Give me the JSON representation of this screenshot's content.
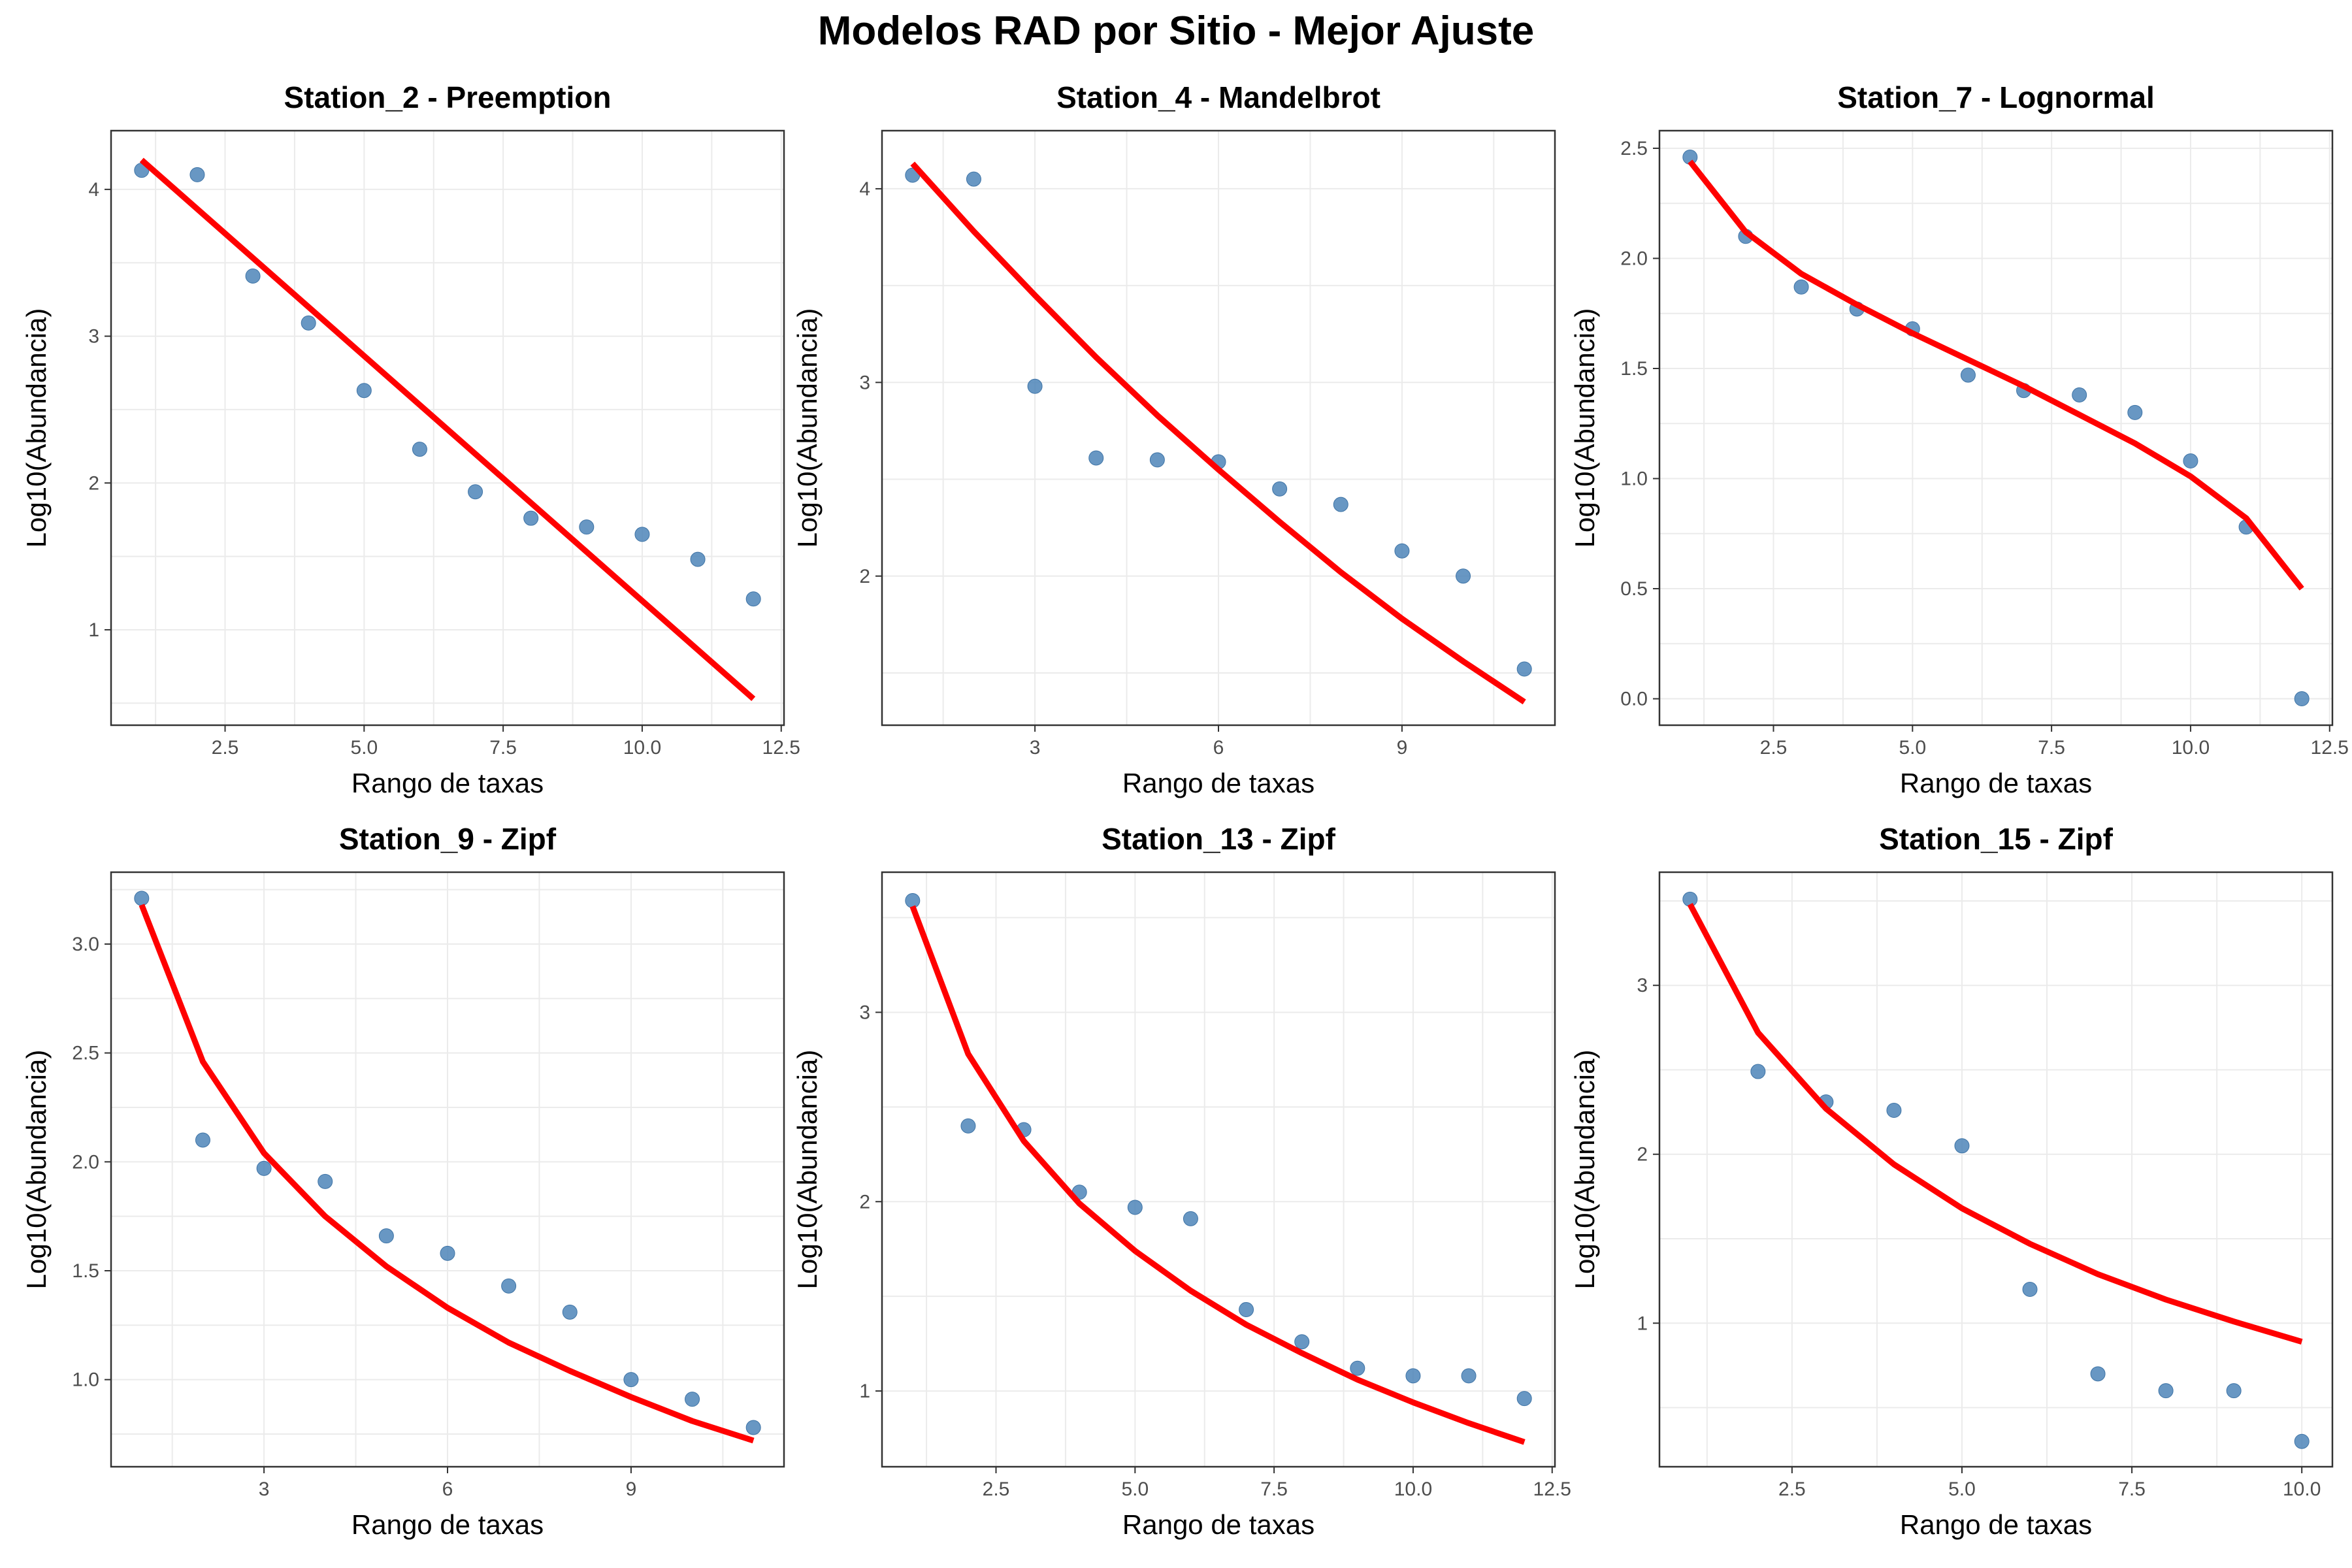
{
  "figure_title": "Modelos RAD por Sitio - Mejor Ajuste",
  "colors": {
    "points": "#4e85b8",
    "fit_line": "#ff0000",
    "grid": "#ebebeb",
    "frame": "#333333"
  },
  "chart_data": [
    {
      "type": "scatter",
      "title": "Station_2 - Preemption",
      "xlabel": "Rango de taxas",
      "ylabel": "Log10(Abundancia)",
      "xlim": [
        0.45,
        12.55
      ],
      "ylim": [
        0.35,
        4.4
      ],
      "xticks": [
        2.5,
        5.0,
        7.5,
        10.0,
        12.5
      ],
      "xticklabels": [
        "2.5",
        "5.0",
        "7.5",
        "10.0",
        "12.5"
      ],
      "yticks": [
        1,
        2,
        3,
        4
      ],
      "yticklabels": [
        "1",
        "2",
        "3",
        "4"
      ],
      "grid": true,
      "series": [
        {
          "kind": "points",
          "x": [
            1,
            2,
            3,
            4,
            5,
            6,
            7,
            8,
            9,
            10,
            11,
            12
          ],
          "y": [
            4.13,
            4.1,
            3.41,
            3.09,
            2.63,
            2.23,
            1.94,
            1.76,
            1.7,
            1.65,
            1.48,
            1.21
          ]
        },
        {
          "kind": "line",
          "x": [
            1,
            12
          ],
          "y": [
            4.2,
            0.53
          ]
        }
      ]
    },
    {
      "type": "scatter",
      "title": "Station_4 - Mandelbrot",
      "xlabel": "Rango de taxas",
      "ylabel": "Log10(Abundancia)",
      "xlim": [
        0.5,
        11.5
      ],
      "ylim": [
        1.23,
        4.3
      ],
      "xticks": [
        3,
        6,
        9
      ],
      "xticklabels": [
        "3",
        "6",
        "9"
      ],
      "yticks": [
        2,
        3,
        4
      ],
      "yticklabels": [
        "2",
        "3",
        "4"
      ],
      "grid": true,
      "series": [
        {
          "kind": "points",
          "x": [
            1,
            2,
            3,
            4,
            5,
            6,
            7,
            8,
            9,
            10,
            11
          ],
          "y": [
            4.07,
            4.05,
            2.98,
            2.61,
            2.6,
            2.59,
            2.45,
            2.37,
            2.13,
            2.0,
            1.52
          ]
        },
        {
          "kind": "line",
          "x": [
            1,
            2,
            3,
            4,
            5,
            6,
            7,
            8,
            9,
            10,
            11
          ],
          "y": [
            4.13,
            3.78,
            3.45,
            3.13,
            2.83,
            2.55,
            2.28,
            2.02,
            1.78,
            1.56,
            1.35
          ]
        }
      ]
    },
    {
      "type": "scatter",
      "title": "Station_7 - Lognormal",
      "xlabel": "Rango de taxas",
      "ylabel": "Log10(Abundancia)",
      "xlim": [
        0.45,
        12.55
      ],
      "ylim": [
        -0.12,
        2.58
      ],
      "xticks": [
        2.5,
        5.0,
        7.5,
        10.0,
        12.5
      ],
      "xticklabels": [
        "2.5",
        "5.0",
        "7.5",
        "10.0",
        "12.5"
      ],
      "yticks": [
        0.0,
        0.5,
        1.0,
        1.5,
        2.0,
        2.5
      ],
      "yticklabels": [
        "0.0",
        "0.5",
        "1.0",
        "1.5",
        "2.0",
        "2.5"
      ],
      "grid": true,
      "series": [
        {
          "kind": "points",
          "x": [
            1,
            2,
            3,
            4,
            5,
            6,
            7,
            8,
            9,
            10,
            11,
            12
          ],
          "y": [
            2.46,
            2.1,
            1.87,
            1.77,
            1.68,
            1.47,
            1.4,
            1.38,
            1.3,
            1.08,
            0.78,
            0.0
          ]
        },
        {
          "kind": "line",
          "x": [
            1,
            2,
            3,
            4,
            5,
            6,
            7,
            8,
            9,
            10,
            11,
            12
          ],
          "y": [
            2.44,
            2.12,
            1.93,
            1.79,
            1.66,
            1.54,
            1.42,
            1.29,
            1.16,
            1.01,
            0.82,
            0.5
          ]
        }
      ]
    },
    {
      "type": "scatter",
      "title": "Station_9 - Zipf",
      "xlabel": "Rango de taxas",
      "ylabel": "Log10(Abundancia)",
      "xlim": [
        0.5,
        11.5
      ],
      "ylim": [
        0.6,
        3.33
      ],
      "xticks": [
        3,
        6,
        9
      ],
      "xticklabels": [
        "3",
        "6",
        "9"
      ],
      "yticks": [
        1.0,
        1.5,
        2.0,
        2.5,
        3.0
      ],
      "yticklabels": [
        "1.0",
        "1.5",
        "2.0",
        "2.5",
        "3.0"
      ],
      "grid": true,
      "series": [
        {
          "kind": "points",
          "x": [
            1,
            2,
            3,
            4,
            5,
            6,
            7,
            8,
            9,
            10,
            11
          ],
          "y": [
            3.21,
            2.1,
            1.97,
            1.91,
            1.66,
            1.58,
            1.43,
            1.31,
            1.0,
            0.91,
            0.78
          ]
        },
        {
          "kind": "line",
          "x": [
            1,
            2,
            3,
            4,
            5,
            6,
            7,
            8,
            9,
            10,
            11
          ],
          "y": [
            3.18,
            2.46,
            2.04,
            1.75,
            1.52,
            1.33,
            1.17,
            1.04,
            0.92,
            0.81,
            0.72
          ]
        }
      ]
    },
    {
      "type": "scatter",
      "title": "Station_13 - Zipf",
      "xlabel": "Rango de taxas",
      "ylabel": "Log10(Abundancia)",
      "xlim": [
        0.45,
        12.55
      ],
      "ylim": [
        0.6,
        3.74
      ],
      "xticks": [
        2.5,
        5.0,
        7.5,
        10.0,
        12.5
      ],
      "xticklabels": [
        "2.5",
        "5.0",
        "7.5",
        "10.0",
        "12.5"
      ],
      "yticks": [
        1,
        2,
        3
      ],
      "yticklabels": [
        "1",
        "2",
        "3"
      ],
      "grid": true,
      "series": [
        {
          "kind": "points",
          "x": [
            1,
            2,
            3,
            4,
            5,
            6,
            7,
            8,
            9,
            10,
            11,
            12
          ],
          "y": [
            3.59,
            2.4,
            2.38,
            2.05,
            1.97,
            1.91,
            1.43,
            1.26,
            1.12,
            1.08,
            1.08,
            0.96
          ]
        },
        {
          "kind": "line",
          "x": [
            1,
            2,
            3,
            4,
            5,
            6,
            7,
            8,
            9,
            10,
            11,
            12
          ],
          "y": [
            3.56,
            2.78,
            2.32,
            1.99,
            1.74,
            1.53,
            1.35,
            1.2,
            1.06,
            0.94,
            0.83,
            0.73
          ]
        }
      ]
    },
    {
      "type": "scatter",
      "title": "Station_15 - Zipf",
      "xlabel": "Rango de taxas",
      "ylabel": "Log10(Abundancia)",
      "xlim": [
        0.55,
        10.45
      ],
      "ylim": [
        0.15,
        3.67
      ],
      "xticks": [
        2.5,
        5.0,
        7.5,
        10.0
      ],
      "xticklabels": [
        "2.5",
        "5.0",
        "7.5",
        "10.0"
      ],
      "yticks": [
        1,
        2,
        3
      ],
      "yticklabels": [
        "1",
        "2",
        "3"
      ],
      "grid": true,
      "series": [
        {
          "kind": "points",
          "x": [
            1,
            2,
            3,
            4,
            5,
            6,
            7,
            8,
            9,
            10
          ],
          "y": [
            3.51,
            2.49,
            2.31,
            2.26,
            2.05,
            1.2,
            0.7,
            0.6,
            0.6,
            0.3
          ]
        },
        {
          "kind": "line",
          "x": [
            1,
            2,
            3,
            4,
            5,
            6,
            7,
            8,
            9,
            10
          ],
          "y": [
            3.48,
            2.72,
            2.27,
            1.94,
            1.68,
            1.47,
            1.29,
            1.14,
            1.01,
            0.89
          ]
        }
      ]
    }
  ]
}
